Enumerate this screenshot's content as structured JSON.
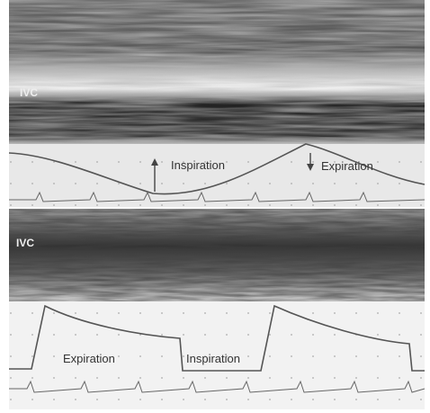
{
  "panels": [
    {
      "vessel_label": "IVC",
      "annotations": [
        "Inspiration",
        "Expiration"
      ]
    },
    {
      "vessel_label": "IVC",
      "annotations": [
        "Expiration",
        "Inspiration"
      ]
    }
  ]
}
